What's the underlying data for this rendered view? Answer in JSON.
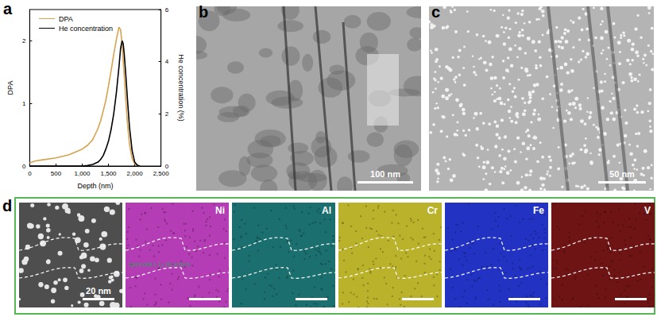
{
  "chart_data": {
    "type": "line",
    "x": [
      0,
      100,
      250,
      500,
      750,
      1000,
      1100,
      1200,
      1300,
      1350,
      1400,
      1450,
      1500,
      1550,
      1600,
      1650,
      1700,
      1730,
      1760,
      1780,
      1800,
      1830,
      1860,
      1900,
      1950,
      2000,
      2050,
      2100
    ],
    "series": [
      {
        "name": "DPA",
        "color": "#d9a24e",
        "values": [
          0.05,
          0.08,
          0.1,
          0.13,
          0.18,
          0.27,
          0.33,
          0.42,
          0.6,
          0.72,
          0.88,
          1.05,
          1.28,
          1.52,
          1.78,
          2.02,
          2.22,
          2.18,
          1.95,
          1.7,
          1.45,
          1.05,
          0.7,
          0.35,
          0.12,
          0.04,
          0.01,
          0
        ]
      },
      {
        "name": "He concentration",
        "color": "#000000",
        "axis": "y2",
        "values": [
          0,
          0,
          0,
          0,
          0,
          0,
          0.02,
          0.06,
          0.15,
          0.25,
          0.4,
          0.65,
          0.95,
          1.4,
          2.0,
          2.8,
          3.8,
          4.5,
          4.8,
          4.7,
          4.3,
          3.5,
          2.6,
          1.5,
          0.6,
          0.15,
          0.03,
          0
        ]
      }
    ],
    "xlabel": "Depth (nm)",
    "ylabel": "DPA",
    "y2label": "He concentration (%)",
    "xlim": [
      0,
      2500
    ],
    "xticks": [
      0,
      500,
      1000,
      1500,
      2000,
      2500
    ],
    "ylim": [
      0,
      2.5
    ],
    "yticks": [
      0,
      1,
      2
    ],
    "y2lim": [
      0,
      6
    ],
    "y2ticks": [
      0,
      2,
      4,
      6
    ],
    "legend": "upper left",
    "grid": false
  },
  "figure": {
    "panel_labels": [
      "a",
      "b",
      "c",
      "d"
    ],
    "b": {
      "scale_bar": "100 nm"
    },
    "c": {
      "scale_bar": "50 nm"
    },
    "d": {
      "scale_bar": "20 nm",
      "annotation": "spinodal L1₂ structure",
      "maps": [
        {
          "element": "Ni",
          "color": "#b43cb4"
        },
        {
          "element": "Al",
          "color": "#1b6f6f"
        },
        {
          "element": "Cr",
          "color": "#b9b22a"
        },
        {
          "element": "Fe",
          "color": "#2233c4"
        },
        {
          "element": "V",
          "color": "#6e1414"
        }
      ]
    }
  }
}
